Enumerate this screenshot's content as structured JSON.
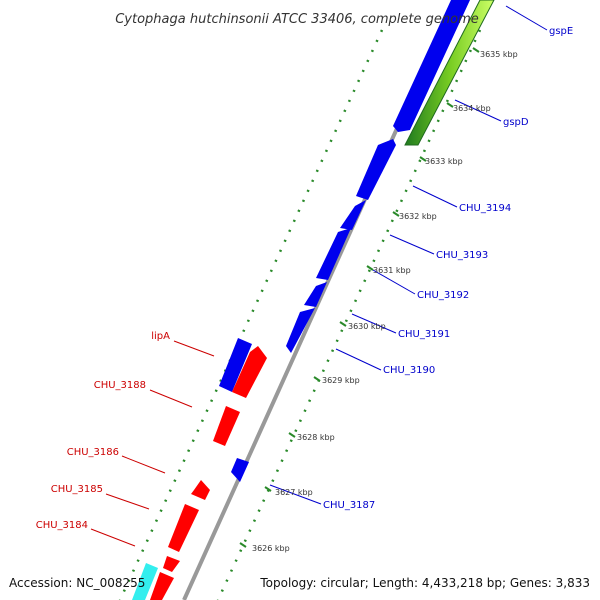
{
  "title": "Cytophaga hutchinsonii ATCC 33406, complete genome",
  "footer": {
    "accession": "Accession: NC_008255",
    "topology": "Topology: circular; Length: 4,433,218 bp; Genes: 3,833"
  },
  "ticks": [
    "3635 kbp",
    "3634 kbp",
    "3633 kbp",
    "3632 kbp",
    "3631 kbp",
    "3630 kbp",
    "3629 kbp",
    "3628 kbp",
    "3627 kbp",
    "3626 kbp"
  ],
  "genes_forward": [
    "gspE",
    "gspD",
    "CHU_3194",
    "CHU_3193",
    "CHU_3192",
    "CHU_3191",
    "CHU_3190",
    "CHU_3187"
  ],
  "genes_reverse": [
    "lipA",
    "CHU_3188",
    "CHU_3186",
    "CHU_3185",
    "CHU_3184"
  ],
  "colors": {
    "forward_gene": "#0000ee",
    "reverse_gene": "#ff0000",
    "forward_label": "#0000cc",
    "reverse_label": "#cc0000",
    "backbone": "#999999",
    "ruler_tick": "#2a8a2a",
    "accent_green": "#99dd33",
    "accent_cyan": "#33eeee"
  }
}
